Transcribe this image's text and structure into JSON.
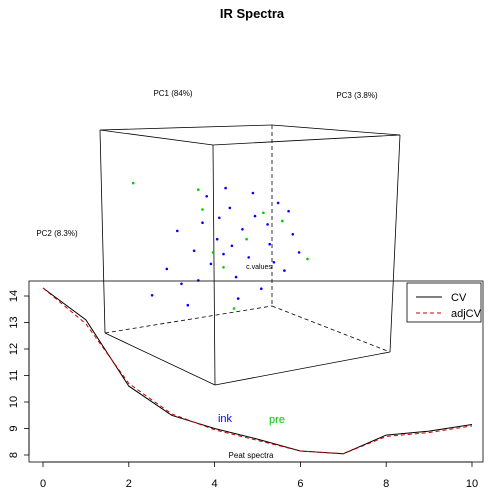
{
  "title": "IR Spectra",
  "scatter3d": {
    "type": "scatter",
    "axis_labels": [
      "PC1 (84%)",
      "PC2 (8.3%)",
      "PC3 (3.8%)"
    ],
    "annotations": [
      "c.values",
      "Peat spectra"
    ],
    "groups": [
      {
        "label": "ink",
        "color": "#0000ff"
      },
      {
        "label": "pre",
        "color": "#00cc00"
      }
    ],
    "points": {
      "ink": [
        [
          0.21,
          0.18
        ],
        [
          0.28,
          0.34
        ],
        [
          0.35,
          0.25
        ],
        [
          0.38,
          0.12
        ],
        [
          0.41,
          0.45
        ],
        [
          0.45,
          0.62
        ],
        [
          0.49,
          0.37
        ],
        [
          0.52,
          0.52
        ],
        [
          0.55,
          0.43
        ],
        [
          0.58,
          0.71
        ],
        [
          0.61,
          0.29
        ],
        [
          0.64,
          0.58
        ],
        [
          0.67,
          0.41
        ],
        [
          0.7,
          0.66
        ],
        [
          0.73,
          0.22
        ],
        [
          0.77,
          0.49
        ],
        [
          0.81,
          0.74
        ],
        [
          0.84,
          0.33
        ],
        [
          0.88,
          0.55
        ],
        [
          0.91,
          0.44
        ],
        [
          0.47,
          0.78
        ],
        [
          0.56,
          0.83
        ],
        [
          0.62,
          0.16
        ],
        [
          0.69,
          0.8
        ],
        [
          0.76,
          0.61
        ],
        [
          0.33,
          0.57
        ],
        [
          0.43,
          0.27
        ],
        [
          0.53,
          0.65
        ],
        [
          0.79,
          0.38
        ],
        [
          0.86,
          0.69
        ],
        [
          0.59,
          0.48
        ]
      ],
      "pre": [
        [
          0.12,
          0.86
        ],
        [
          0.43,
          0.82
        ],
        [
          0.45,
          0.7
        ],
        [
          0.5,
          0.44
        ],
        [
          0.55,
          0.35
        ],
        [
          0.66,
          0.52
        ],
        [
          0.74,
          0.68
        ],
        [
          0.83,
          0.63
        ],
        [
          0.6,
          0.1
        ],
        [
          0.95,
          0.4
        ]
      ]
    }
  },
  "chart_data": {
    "type": "line",
    "x": [
      0,
      1,
      2,
      3,
      4,
      5,
      6,
      7,
      8,
      9,
      10
    ],
    "xlim": [
      0,
      10
    ],
    "ylim": [
      8,
      14.5
    ],
    "xticks": [
      0,
      2,
      4,
      6,
      8,
      10
    ],
    "yticks": [
      8,
      9,
      10,
      11,
      12,
      13,
      14
    ],
    "legend_position": "top-right",
    "series": [
      {
        "name": "CV",
        "color": "#000000",
        "style": "solid",
        "values": [
          14.3,
          13.1,
          10.6,
          9.5,
          9.0,
          8.6,
          8.15,
          8.05,
          8.75,
          8.9,
          9.15
        ]
      },
      {
        "name": "adjCV",
        "color": "#cc0000",
        "style": "dashed",
        "values": [
          14.3,
          12.95,
          10.7,
          9.55,
          8.95,
          8.55,
          8.15,
          8.05,
          8.7,
          8.85,
          9.1
        ]
      }
    ]
  }
}
